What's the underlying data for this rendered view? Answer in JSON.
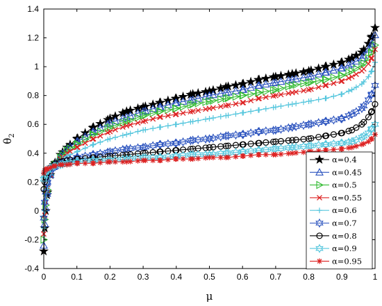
{
  "chart_data": {
    "type": "line",
    "title": "",
    "xlabel": "μ",
    "ylabel_main": "θ",
    "ylabel_sub": "2",
    "xlim": [
      0,
      1
    ],
    "ylim": [
      -0.4,
      1.4
    ],
    "xticks": [
      "0",
      "0.1",
      "0.2",
      "0.3",
      "0.4",
      "0.5",
      "0.6",
      "0.7",
      "0.8",
      "0.9",
      "1"
    ],
    "yticks": [
      "-0.4",
      "-0.2",
      "0",
      "0.2",
      "0.4",
      "0.6",
      "0.8",
      "1",
      "1.2",
      "1.4"
    ],
    "grid": false,
    "legend_position": "bottom-right",
    "x": [
      0,
      0.003,
      0.006,
      0.01,
      0.02,
      0.03,
      0.05,
      0.07,
      0.1,
      0.15,
      0.2,
      0.25,
      0.3,
      0.35,
      0.4,
      0.45,
      0.5,
      0.55,
      0.6,
      0.65,
      0.7,
      0.75,
      0.8,
      0.85,
      0.9,
      0.93,
      0.96,
      0.98,
      0.99,
      1.0
    ],
    "series": [
      {
        "name": "α=0.4",
        "color": "#000000",
        "marker": "star",
        "values": [
          -0.28,
          -0.12,
          0.0,
          0.11,
          0.25,
          0.32,
          0.39,
          0.44,
          0.5,
          0.58,
          0.64,
          0.69,
          0.72,
          0.75,
          0.78,
          0.81,
          0.83,
          0.86,
          0.88,
          0.91,
          0.93,
          0.95,
          0.97,
          1.0,
          1.03,
          1.06,
          1.1,
          1.16,
          1.21,
          1.27
        ]
      },
      {
        "name": "α=0.45",
        "color": "#2a52be",
        "marker": "triangle-up",
        "values": [
          -0.24,
          -0.09,
          0.02,
          0.12,
          0.25,
          0.31,
          0.38,
          0.43,
          0.48,
          0.55,
          0.61,
          0.65,
          0.69,
          0.72,
          0.75,
          0.77,
          0.8,
          0.82,
          0.84,
          0.87,
          0.89,
          0.91,
          0.93,
          0.96,
          0.99,
          1.02,
          1.06,
          1.12,
          1.16,
          1.22
        ]
      },
      {
        "name": "α=0.5",
        "color": "#33bb33",
        "marker": "triangle-right",
        "values": [
          -0.2,
          -0.06,
          0.04,
          0.13,
          0.25,
          0.31,
          0.37,
          0.42,
          0.46,
          0.53,
          0.58,
          0.62,
          0.66,
          0.69,
          0.71,
          0.74,
          0.76,
          0.78,
          0.8,
          0.82,
          0.84,
          0.87,
          0.89,
          0.91,
          0.94,
          0.97,
          1.01,
          1.06,
          1.1,
          1.15
        ]
      },
      {
        "name": "α=0.55",
        "color": "#dd2222",
        "marker": "x",
        "values": [
          -0.16,
          -0.03,
          0.06,
          0.14,
          0.25,
          0.3,
          0.36,
          0.4,
          0.44,
          0.5,
          0.55,
          0.59,
          0.62,
          0.65,
          0.67,
          0.69,
          0.71,
          0.73,
          0.75,
          0.78,
          0.8,
          0.82,
          0.84,
          0.87,
          0.9,
          0.93,
          0.97,
          1.02,
          1.06,
          1.12
        ]
      },
      {
        "name": "α=0.6",
        "color": "#55c6dd",
        "marker": "plus",
        "values": [
          -0.12,
          0.0,
          0.08,
          0.15,
          0.25,
          0.3,
          0.35,
          0.38,
          0.41,
          0.46,
          0.5,
          0.53,
          0.56,
          0.58,
          0.6,
          0.62,
          0.64,
          0.66,
          0.68,
          0.7,
          0.72,
          0.74,
          0.76,
          0.78,
          0.81,
          0.84,
          0.88,
          0.93,
          0.97,
          1.03
        ]
      },
      {
        "name": "α=0.7",
        "color": "#2a52be",
        "marker": "hexagram",
        "values": [
          -0.05,
          0.06,
          0.13,
          0.19,
          0.26,
          0.3,
          0.33,
          0.35,
          0.37,
          0.39,
          0.41,
          0.43,
          0.44,
          0.46,
          0.47,
          0.49,
          0.5,
          0.52,
          0.53,
          0.55,
          0.56,
          0.58,
          0.6,
          0.62,
          0.64,
          0.67,
          0.71,
          0.77,
          0.81,
          0.87
        ]
      },
      {
        "name": "α=0.8",
        "color": "#000000",
        "marker": "circle",
        "values": [
          0.15,
          0.2,
          0.23,
          0.26,
          0.3,
          0.32,
          0.34,
          0.35,
          0.36,
          0.37,
          0.38,
          0.39,
          0.4,
          0.41,
          0.42,
          0.43,
          0.44,
          0.45,
          0.46,
          0.47,
          0.48,
          0.49,
          0.5,
          0.52,
          0.54,
          0.56,
          0.6,
          0.65,
          0.69,
          0.74
        ]
      },
      {
        "name": "α=0.9",
        "color": "#55c6dd",
        "marker": "hexagram",
        "values": [
          0.22,
          0.25,
          0.27,
          0.28,
          0.3,
          0.31,
          0.32,
          0.33,
          0.34,
          0.35,
          0.35,
          0.36,
          0.37,
          0.37,
          0.38,
          0.39,
          0.39,
          0.4,
          0.41,
          0.42,
          0.43,
          0.44,
          0.45,
          0.46,
          0.47,
          0.48,
          0.51,
          0.54,
          0.57,
          0.6
        ]
      },
      {
        "name": "α=0.95",
        "color": "#dd2222",
        "marker": "asterisk",
        "values": [
          0.26,
          0.28,
          0.29,
          0.29,
          0.3,
          0.31,
          0.32,
          0.32,
          0.33,
          0.33,
          0.34,
          0.34,
          0.35,
          0.35,
          0.36,
          0.36,
          0.37,
          0.37,
          0.38,
          0.39,
          0.39,
          0.4,
          0.41,
          0.42,
          0.43,
          0.44,
          0.46,
          0.48,
          0.5,
          0.53
        ]
      }
    ]
  }
}
